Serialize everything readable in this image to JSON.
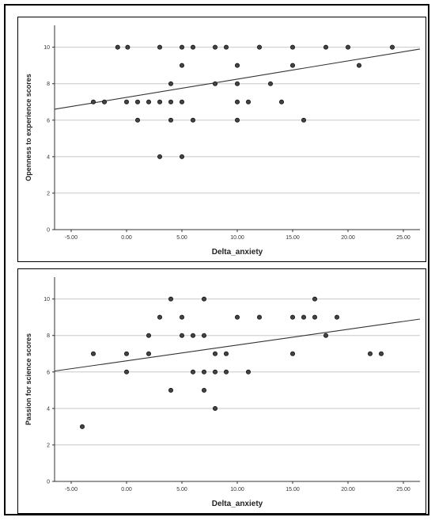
{
  "chart_data": [
    {
      "type": "scatter",
      "xlabel": "Delta_anxiety",
      "ylabel": "Openness to experience scores",
      "xlim": [
        -6.5,
        26.5
      ],
      "ylim": [
        0,
        11.2
      ],
      "xticks": [
        -5,
        0,
        5,
        10,
        15,
        20,
        25
      ],
      "xtick_labels": [
        "-5.00",
        "0.00",
        "5.00",
        "10.00",
        "15.00",
        "20.00",
        "25.00"
      ],
      "yticks": [
        0,
        2,
        4,
        6,
        8,
        10
      ],
      "ytick_labels": [
        "0",
        "2",
        "4",
        "6",
        "8",
        "10"
      ],
      "grid": "horizontal",
      "fit_line": {
        "x": [
          -6.5,
          26.5
        ],
        "y": [
          6.6,
          9.9
        ]
      },
      "points": [
        {
          "x": -3,
          "y": 7
        },
        {
          "x": -2,
          "y": 7
        },
        {
          "x": -0.8,
          "y": 10
        },
        {
          "x": 0,
          "y": 7
        },
        {
          "x": 0.1,
          "y": 10
        },
        {
          "x": 1,
          "y": 7
        },
        {
          "x": 1,
          "y": 6
        },
        {
          "x": 2,
          "y": 7
        },
        {
          "x": 3,
          "y": 10
        },
        {
          "x": 3,
          "y": 7
        },
        {
          "x": 3,
          "y": 4
        },
        {
          "x": 4,
          "y": 8
        },
        {
          "x": 4,
          "y": 7
        },
        {
          "x": 4,
          "y": 6
        },
        {
          "x": 5,
          "y": 10
        },
        {
          "x": 5,
          "y": 9
        },
        {
          "x": 5,
          "y": 7
        },
        {
          "x": 5,
          "y": 4
        },
        {
          "x": 6,
          "y": 10
        },
        {
          "x": 6,
          "y": 6
        },
        {
          "x": 8,
          "y": 10
        },
        {
          "x": 8,
          "y": 8
        },
        {
          "x": 9,
          "y": 10
        },
        {
          "x": 10,
          "y": 9
        },
        {
          "x": 10,
          "y": 8
        },
        {
          "x": 10,
          "y": 7
        },
        {
          "x": 10,
          "y": 6
        },
        {
          "x": 11,
          "y": 7
        },
        {
          "x": 12,
          "y": 10
        },
        {
          "x": 13,
          "y": 8
        },
        {
          "x": 14,
          "y": 7
        },
        {
          "x": 15,
          "y": 10
        },
        {
          "x": 15,
          "y": 9
        },
        {
          "x": 16,
          "y": 6
        },
        {
          "x": 18,
          "y": 10
        },
        {
          "x": 20,
          "y": 10
        },
        {
          "x": 21,
          "y": 9
        },
        {
          "x": 24,
          "y": 10
        }
      ]
    },
    {
      "type": "scatter",
      "xlabel": "Delta_anxiety",
      "ylabel": "Passion for science scores",
      "xlim": [
        -6.5,
        26.5
      ],
      "ylim": [
        0,
        11.2
      ],
      "xticks": [
        -5,
        0,
        5,
        10,
        15,
        20,
        25
      ],
      "xtick_labels": [
        "-5.00",
        "0.00",
        "5.00",
        "10.00",
        "15.00",
        "20.00",
        "25.00"
      ],
      "yticks": [
        0,
        2,
        4,
        6,
        8,
        10
      ],
      "ytick_labels": [
        "0",
        "2",
        "4",
        "6",
        "8",
        "10"
      ],
      "grid": "horizontal",
      "fit_line": {
        "x": [
          -6.5,
          26.5
        ],
        "y": [
          6.05,
          8.9
        ]
      },
      "points": [
        {
          "x": -4,
          "y": 3
        },
        {
          "x": -3,
          "y": 7
        },
        {
          "x": 0,
          "y": 7
        },
        {
          "x": 0,
          "y": 6
        },
        {
          "x": 2,
          "y": 8
        },
        {
          "x": 2,
          "y": 7
        },
        {
          "x": 3,
          "y": 9
        },
        {
          "x": 4,
          "y": 10
        },
        {
          "x": 4,
          "y": 5
        },
        {
          "x": 5,
          "y": 9
        },
        {
          "x": 5,
          "y": 8
        },
        {
          "x": 6,
          "y": 8
        },
        {
          "x": 6,
          "y": 6
        },
        {
          "x": 7,
          "y": 10
        },
        {
          "x": 7,
          "y": 8
        },
        {
          "x": 7,
          "y": 6
        },
        {
          "x": 7,
          "y": 5
        },
        {
          "x": 8,
          "y": 7
        },
        {
          "x": 8,
          "y": 6
        },
        {
          "x": 8,
          "y": 4
        },
        {
          "x": 9,
          "y": 7
        },
        {
          "x": 9,
          "y": 6
        },
        {
          "x": 10,
          "y": 9
        },
        {
          "x": 11,
          "y": 6
        },
        {
          "x": 12,
          "y": 9
        },
        {
          "x": 15,
          "y": 9
        },
        {
          "x": 15,
          "y": 7
        },
        {
          "x": 16,
          "y": 9
        },
        {
          "x": 17,
          "y": 10
        },
        {
          "x": 17,
          "y": 9
        },
        {
          "x": 18,
          "y": 8
        },
        {
          "x": 19,
          "y": 9
        },
        {
          "x": 22,
          "y": 7
        },
        {
          "x": 23,
          "y": 7
        }
      ]
    }
  ],
  "colors": {
    "point_fill": "#444444",
    "point_stroke": "#111111",
    "grid": "#c8c8c8",
    "axis": "#333333",
    "fit_line": "#333333"
  }
}
